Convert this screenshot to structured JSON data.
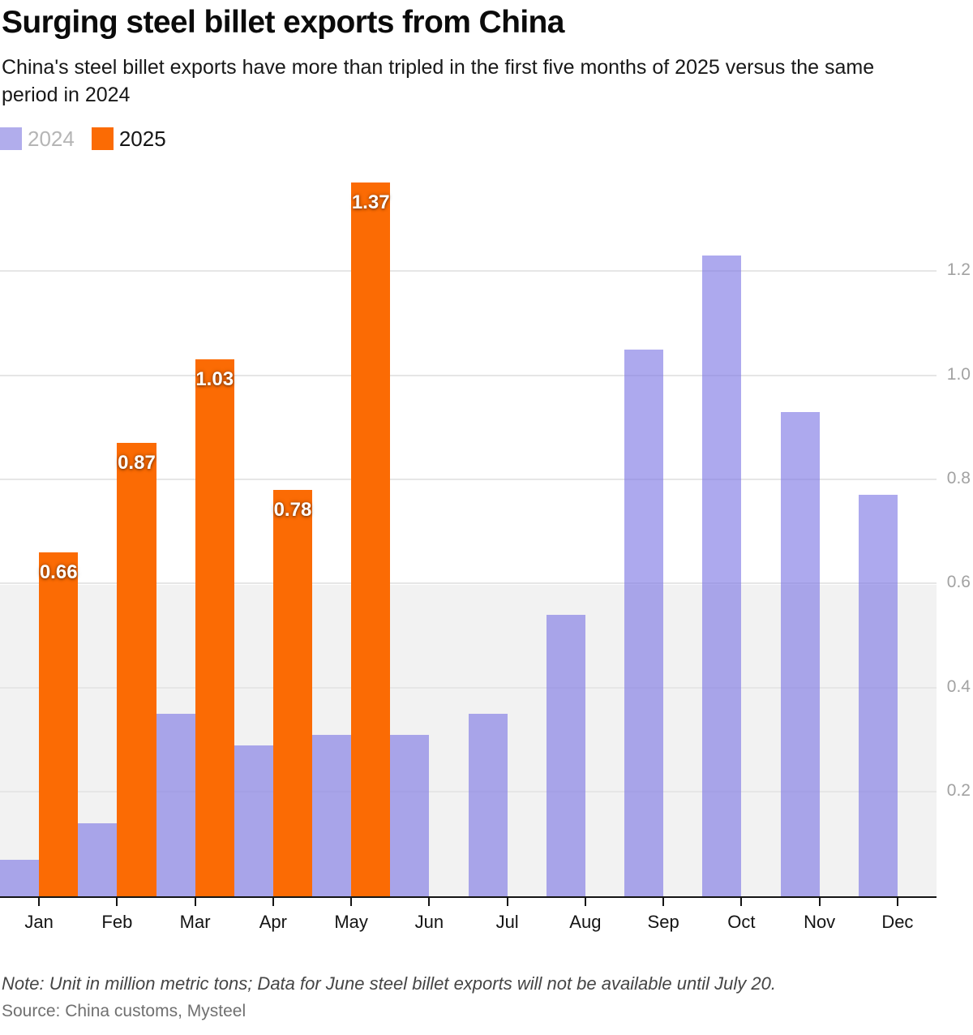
{
  "header": {
    "title": "Surging steel billet exports from China",
    "subtitle": "China's steel billet exports have more than tripled in the first five months of 2025 versus the same period in 2024"
  },
  "legend": [
    {
      "label": "2024",
      "swatch_color": "#b1adec",
      "text_color": "#b5b5b5"
    },
    {
      "label": "2025",
      "swatch_color": "#fb6b04",
      "text_color": "#151515"
    }
  ],
  "chart_data": {
    "type": "bar",
    "title": "Surging steel billet exports from China",
    "unit": "million metric tons",
    "categories": [
      "Jan",
      "Feb",
      "Mar",
      "Apr",
      "May",
      "Jun",
      "Jul",
      "Aug",
      "Sep",
      "Oct",
      "Nov",
      "Dec"
    ],
    "series": [
      {
        "name": "2024",
        "color": "rgba(125,118,228,0.63)",
        "values": [
          0.07,
          0.14,
          0.35,
          0.29,
          0.31,
          0.31,
          0.35,
          0.54,
          1.05,
          1.23,
          0.93,
          0.77
        ],
        "bar_labels": [
          null,
          null,
          null,
          null,
          null,
          null,
          null,
          null,
          null,
          null,
          null,
          null
        ]
      },
      {
        "name": "2025",
        "color": "#fb6b04",
        "values": [
          0.66,
          0.87,
          1.03,
          0.78,
          1.37,
          null,
          null,
          null,
          null,
          null,
          null,
          null
        ],
        "bar_labels": [
          "0.66",
          "0.87",
          "1.03",
          "0.78",
          "1.37",
          null,
          null,
          null,
          null,
          null,
          null,
          null
        ]
      }
    ],
    "yticks": [
      0.2,
      0.4,
      0.6,
      0.8,
      1.0,
      1.2
    ],
    "ylim": [
      0,
      1.4
    ],
    "grid": true,
    "gridline_color": "#e6e6e6",
    "band": {
      "from": 0,
      "to": 0.6,
      "color": "#f2f2f2"
    },
    "legend_position": "top-left",
    "y_axis_side": "right"
  },
  "footer": {
    "note": "Note: Unit in million metric tons; Data for June steel billet exports will not be available until July 20.",
    "source": "Source: China customs, Mysteel"
  }
}
